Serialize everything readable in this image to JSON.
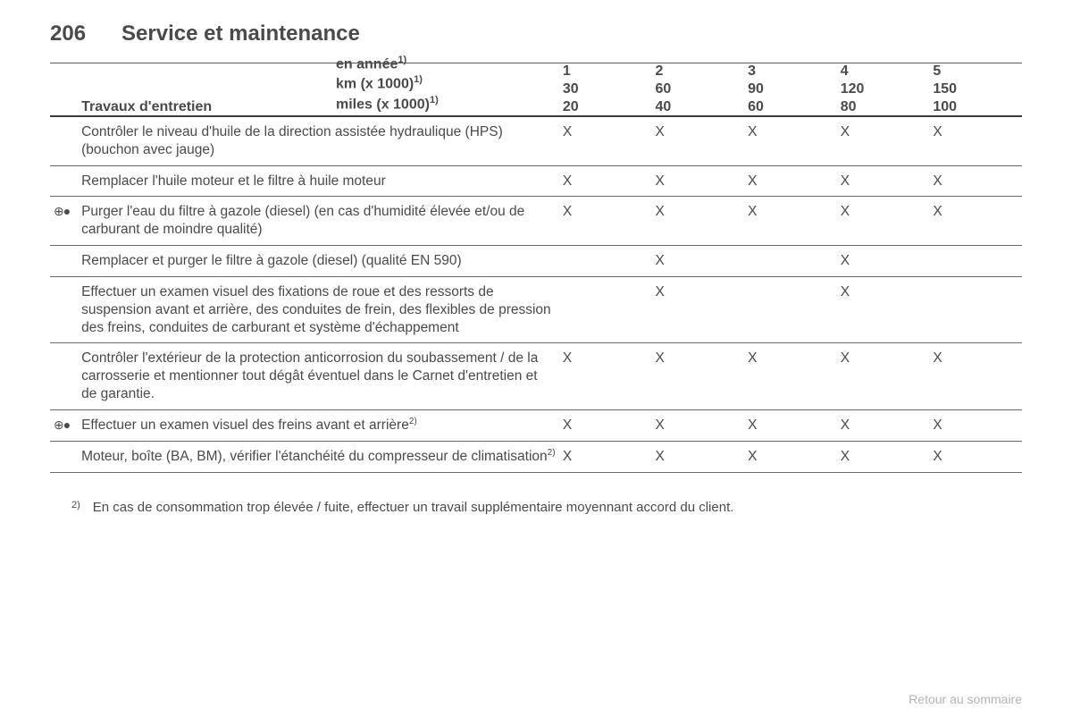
{
  "page": {
    "number": "206",
    "title": "Service et maintenance"
  },
  "table": {
    "header": {
      "work_label": "Travaux d'entretien",
      "units": [
        {
          "label": "en année",
          "sup": "1)"
        },
        {
          "label": "km (x 1000)",
          "sup": "1)"
        },
        {
          "label": "miles (x 1000)",
          "sup": "1)"
        }
      ],
      "intervals": [
        {
          "year": "1",
          "km": "30",
          "miles": "20"
        },
        {
          "year": "2",
          "km": "60",
          "miles": "40"
        },
        {
          "year": "3",
          "km": "90",
          "miles": "60"
        },
        {
          "year": "4",
          "km": "120",
          "miles": "80"
        },
        {
          "year": "5",
          "km": "150",
          "miles": "100"
        }
      ]
    },
    "rows": [
      {
        "markers": "",
        "desc": "Contrôler le niveau d'huile de la direction assistée hydraulique (HPS) (bouchon avec jauge)",
        "sup": "",
        "cells": [
          "X",
          "X",
          "X",
          "X",
          "X"
        ]
      },
      {
        "markers": "",
        "desc": "Remplacer l'huile moteur et le filtre à huile moteur",
        "sup": "",
        "cells": [
          "X",
          "X",
          "X",
          "X",
          "X"
        ]
      },
      {
        "markers": "⊕●",
        "desc": "Purger l'eau du filtre à gazole (diesel) (en cas d'humidité élevée et/ou de carburant de moindre qualité)",
        "sup": "",
        "cells": [
          "X",
          "X",
          "X",
          "X",
          "X"
        ]
      },
      {
        "markers": "",
        "desc": "Remplacer et purger le filtre à gazole (diesel) (qualité EN 590)",
        "sup": "",
        "cells": [
          "",
          "X",
          "",
          "X",
          ""
        ]
      },
      {
        "markers": "",
        "desc": "Effectuer un examen visuel des fixations de roue et des ressorts de suspension avant et arrière, des conduites de frein, des flexibles de pression des freins, conduites de carburant et système d'échappement",
        "sup": "",
        "cells": [
          "",
          "X",
          "",
          "X",
          ""
        ]
      },
      {
        "markers": "",
        "desc": "Contrôler l'extérieur de la protection anticorrosion du soubassement / de la carrosserie et mentionner tout dégât éventuel dans le Carnet d'entretien et de garantie.",
        "sup": "",
        "cells": [
          "X",
          "X",
          "X",
          "X",
          "X"
        ]
      },
      {
        "markers": "⊕●",
        "desc": "Effectuer un examen visuel des freins avant et arrière",
        "sup": "2)",
        "cells": [
          "X",
          "X",
          "X",
          "X",
          "X"
        ]
      },
      {
        "markers": "",
        "desc": "Moteur, boîte (BA, BM), vérifier l'étanchéité du compresseur de climatisation",
        "sup": "2)",
        "cells": [
          "X",
          "X",
          "X",
          "X",
          "X"
        ]
      }
    ]
  },
  "footnote": {
    "ref": "2)",
    "text": "En cas de consommation trop élevée / fuite, effectuer un travail supplémentaire moyennant accord du client."
  },
  "return_link": "Retour au sommaire",
  "style": {
    "text_color": "#4a4a4a",
    "bg_color": "#ffffff",
    "rule_color": "#5a5a5a",
    "link_color": "#b4b4b4",
    "font_family": "Arial, Helvetica, sans-serif",
    "title_fontsize": 24,
    "body_fontsize": 15.5
  }
}
